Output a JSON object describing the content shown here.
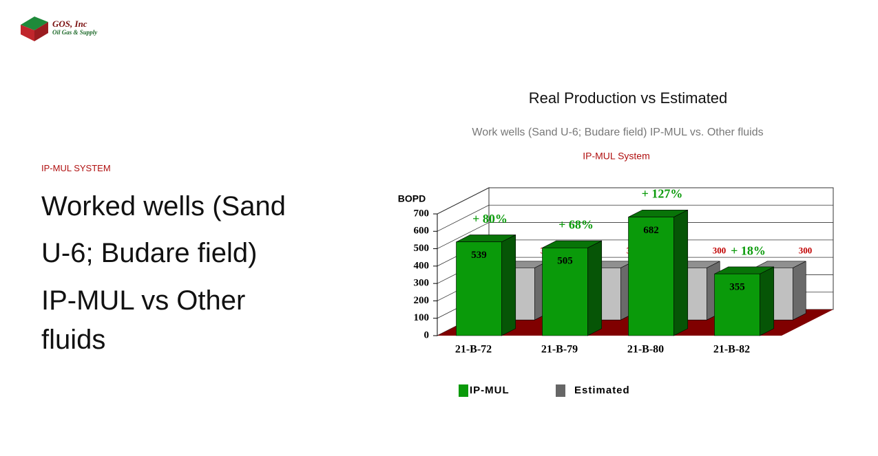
{
  "logo": {
    "name": "GOS, Inc",
    "tagline": "Oil Gas & Supply"
  },
  "section_label": "IP-MUL SYSTEM",
  "headings": [
    "Worked wells (Sand U-6; Budare field)",
    "IP-MUL vs Other fluids"
  ],
  "chart_data": {
    "type": "bar3d",
    "title": "Real Production vs Estimated",
    "subtitle": "Work wells (Sand U-6; Budare field) IP-MUL vs. Other fluids",
    "caption": "IP-MUL System",
    "y_label": "BOPD",
    "categories": [
      "21-B-72",
      "21-B-79",
      "21-B-80",
      "21-B-82"
    ],
    "series": [
      {
        "name": "IP-MUL",
        "color": "#0a9a0a",
        "values": [
          539,
          505,
          682,
          355
        ]
      },
      {
        "name": "Estimated",
        "color": "#c0c0c0",
        "values": [
          300,
          300,
          300,
          300
        ]
      }
    ],
    "annotations": [
      "+ 80%",
      "+ 68%",
      "+ 127%",
      "+ 18%"
    ],
    "ylim": [
      0,
      700
    ],
    "yticks": [
      0,
      100,
      200,
      300,
      400,
      500,
      600,
      700
    ],
    "grid": true,
    "floor_color": "#800000",
    "legend": "bottom"
  }
}
